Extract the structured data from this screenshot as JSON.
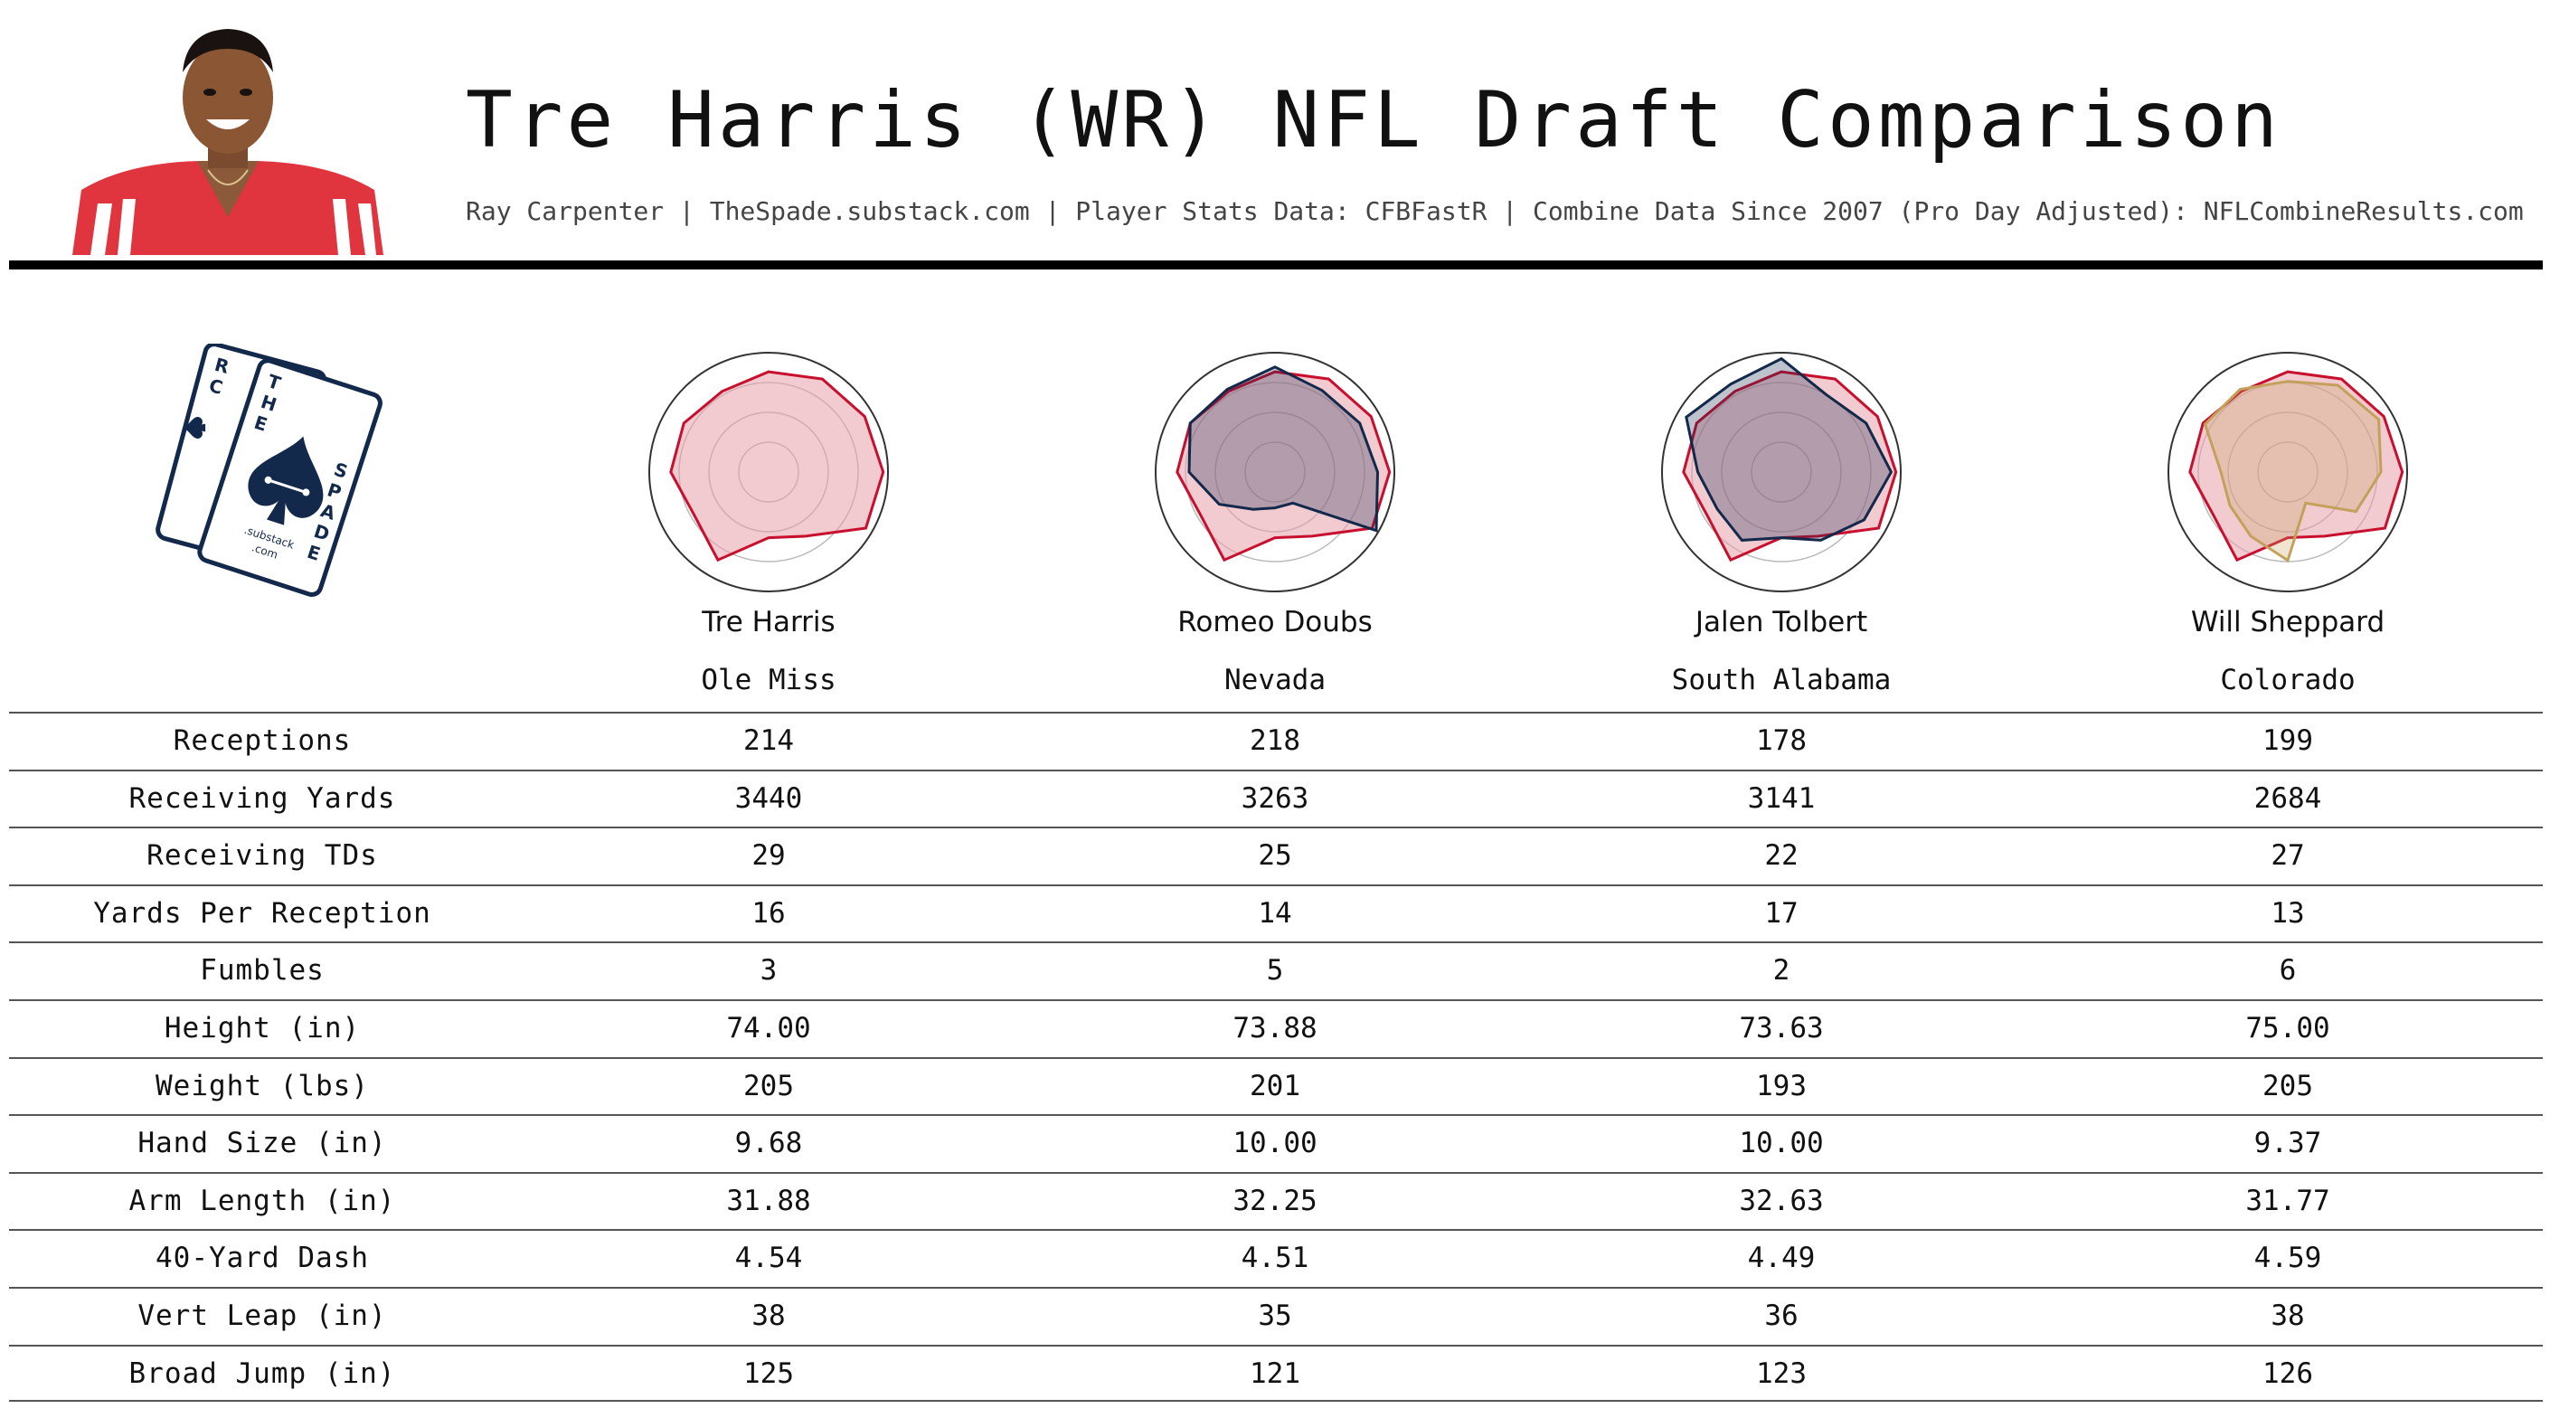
{
  "header": {
    "title": "Tre Harris (WR) NFL Draft Comparison",
    "subtitle": "Ray Carpenter | TheSpade.substack.com | Player Stats Data: CFBFastR | Combine Data Since 2007 (Pro Day Adjusted): NFLCombineResults.com"
  },
  "logo": {
    "back_card_letters": [
      "R",
      "C"
    ],
    "front_card_letters_top": [
      "T",
      "H",
      "E"
    ],
    "front_card_letters_side": [
      "S",
      "P",
      "A",
      "D",
      "E"
    ],
    "substack_text": ".substack",
    "com_text": ".com"
  },
  "colors": {
    "target_line": "#c8102e",
    "target_fill": "#e8a0ab",
    "comp_colors": [
      "#13294b",
      "#13294b",
      "#c4a15a"
    ],
    "navy": "#13294b"
  },
  "players": [
    {
      "name": "Tre Harris",
      "school": "Ole Miss"
    },
    {
      "name": "Romeo Doubs",
      "school": "Nevada"
    },
    {
      "name": "Jalen Tolbert",
      "school": "South Alabama"
    },
    {
      "name": "Will Sheppard",
      "school": "Colorado"
    }
  ],
  "chart_data": [
    {
      "type": "table",
      "columns": [
        "Tre Harris",
        "Romeo Doubs",
        "Jalen Tolbert",
        "Will Sheppard"
      ],
      "rows": [
        {
          "label": "Receptions",
          "values": [
            "214",
            "218",
            "178",
            "199"
          ]
        },
        {
          "label": "Receiving Yards",
          "values": [
            "3440",
            "3263",
            "3141",
            "2684"
          ]
        },
        {
          "label": "Receiving TDs",
          "values": [
            "29",
            "25",
            "22",
            "27"
          ]
        },
        {
          "label": "Yards Per Reception",
          "values": [
            "16",
            "14",
            "17",
            "13"
          ]
        },
        {
          "label": "Fumbles",
          "values": [
            "3",
            "5",
            "2",
            "6"
          ]
        },
        {
          "label": "Height (in)",
          "values": [
            "74.00",
            "73.88",
            "73.63",
            "75.00"
          ]
        },
        {
          "label": "Weight (lbs)",
          "values": [
            "205",
            "201",
            "193",
            "205"
          ]
        },
        {
          "label": "Hand Size (in)",
          "values": [
            "9.68",
            "10.00",
            "10.00",
            "9.37"
          ]
        },
        {
          "label": "Arm Length (in)",
          "values": [
            "31.88",
            "32.25",
            "32.63",
            "31.77"
          ]
        },
        {
          "label": "40-Yard Dash",
          "values": [
            "4.54",
            "4.51",
            "4.49",
            "4.59"
          ]
        },
        {
          "label": "Vert Leap (in)",
          "values": [
            "38",
            "35",
            "36",
            "38"
          ]
        },
        {
          "label": "Broad Jump (in)",
          "values": [
            "125",
            "121",
            "123",
            "126"
          ]
        }
      ]
    },
    {
      "type": "radar",
      "rmax": 1,
      "rings": 4,
      "series": [
        {
          "values": [
            0.84,
            0.9,
            0.93,
            0.96,
            0.94,
            0.62,
            0.55,
            0.85,
            0.72,
            0.82,
            0.82,
            0.78
          ]
        },
        {
          "values": [
            0.88,
            0.79,
            0.82,
            0.86,
            0.98,
            0.3,
            0.3,
            0.36,
            0.54,
            0.72,
            0.82,
            0.8
          ]
        },
        {
          "values": [
            0.95,
            0.75,
            0.82,
            0.92,
            0.8,
            0.66,
            0.55,
            0.66,
            0.62,
            0.7,
            0.92,
            0.85
          ]
        },
        {
          "values": [
            0.76,
            0.84,
            0.88,
            0.78,
            0.66,
            0.3,
            0.74,
            0.62,
            0.56,
            0.56,
            0.8,
            0.8
          ]
        }
      ]
    }
  ]
}
